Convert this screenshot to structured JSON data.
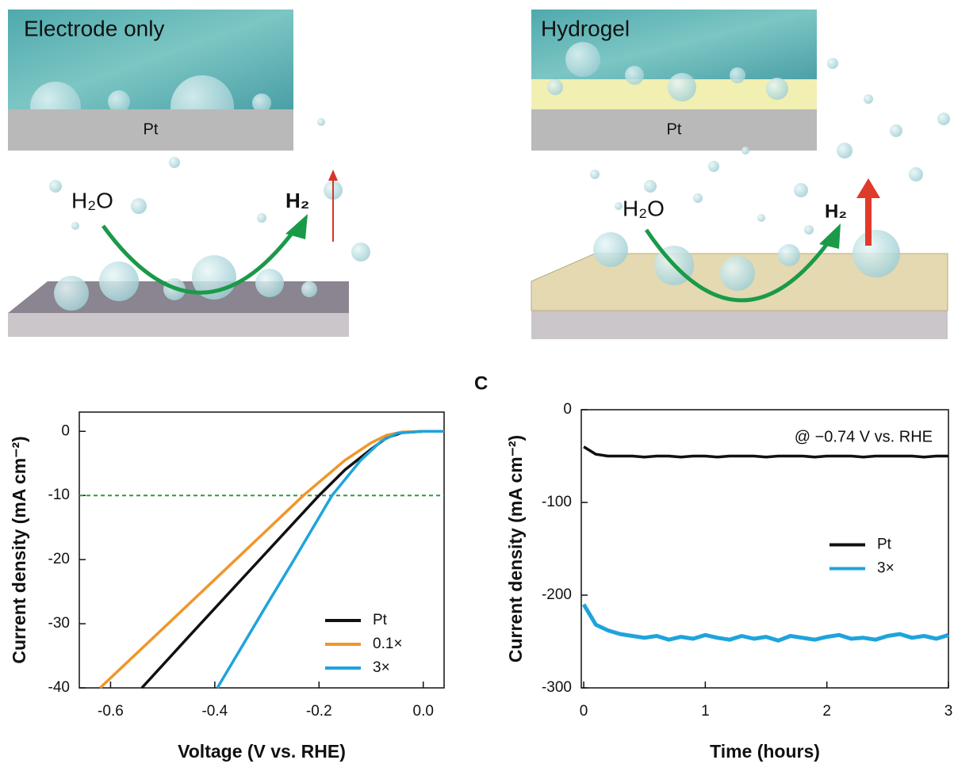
{
  "diagrams": [
    {
      "title": "Electrode only",
      "substrate": "Pt",
      "reactant": "H₂O",
      "product": "H₂"
    },
    {
      "title": "Hydrogel",
      "substrate": "Pt",
      "reactant": "H₂O",
      "product": "H₂"
    }
  ],
  "chart_data": [
    {
      "type": "line",
      "x_label": "Voltage (V vs. RHE)",
      "y_label": "Current density (mA cm⁻²)",
      "xlim": [
        -0.66,
        0.04
      ],
      "ylim": [
        -40,
        3
      ],
      "xticks": [
        -0.6,
        -0.4,
        -0.2,
        {
          "value": 0,
          "label": "0.0"
        }
      ],
      "yticks": [
        0,
        -10,
        -20,
        -30,
        -40
      ],
      "reference_lines": [
        {
          "value": -10,
          "color": "#2a9d3e"
        }
      ],
      "legend": "lower right",
      "series": [
        {
          "name": "Pt",
          "color": "#111111",
          "x": [
            -0.54,
            -0.45,
            -0.35,
            -0.25,
            -0.2,
            -0.15,
            -0.1,
            -0.07,
            -0.04,
            0,
            0.04
          ],
          "values": [
            -40,
            -32,
            -23.2,
            -14.4,
            -10,
            -6,
            -2.8,
            -1,
            -0.2,
            0,
            0
          ]
        },
        {
          "name": "0.1×",
          "color": "#f0962a",
          "x": [
            -0.62,
            -0.5,
            -0.4,
            -0.3,
            -0.23,
            -0.15,
            -0.1,
            -0.07,
            -0.04,
            0,
            0.04
          ],
          "values": [
            -40,
            -30.8,
            -23.1,
            -15.4,
            -10,
            -4.5,
            -1.8,
            -0.6,
            -0.1,
            0,
            0
          ]
        },
        {
          "name": "3×",
          "color": "#1ea4dc",
          "x": [
            -0.395,
            -0.3,
            -0.25,
            -0.175,
            -0.12,
            -0.08,
            -0.05,
            0,
            0.04
          ],
          "values": [
            -40,
            -27,
            -20.3,
            -10,
            -4.5,
            -1.5,
            -0.3,
            0,
            0
          ]
        }
      ]
    },
    {
      "type": "line",
      "panel_label": "C",
      "x_label": "Time (hours)",
      "y_label": "Current density (mA cm⁻²)",
      "annotation": "@ −0.74 V vs. RHE",
      "xlim": [
        -0.02,
        3
      ],
      "ylim": [
        -300,
        0
      ],
      "xticks": [
        0,
        1,
        2,
        3
      ],
      "yticks": [
        0,
        -100,
        -200,
        -300
      ],
      "legend": "center right",
      "x": [
        0,
        0.1,
        0.2,
        0.3,
        0.4,
        0.5,
        0.6,
        0.7,
        0.8,
        0.9,
        1,
        1.1,
        1.2,
        1.3,
        1.4,
        1.5,
        1.6,
        1.7,
        1.8,
        1.9,
        2,
        2.1,
        2.2,
        2.3,
        2.4,
        2.5,
        2.6,
        2.7,
        2.8,
        2.9,
        3
      ],
      "series": [
        {
          "name": "Pt",
          "color": "#111111",
          "values": [
            -40,
            -48,
            -50,
            -50,
            -50,
            -51,
            -50,
            -50,
            -51,
            -50,
            -50,
            -51,
            -50,
            -50,
            -50,
            -51,
            -50,
            -50,
            -50,
            -51,
            -50,
            -50,
            -50,
            -51,
            -50,
            -50,
            -50,
            -50,
            -51,
            -50,
            -50
          ]
        },
        {
          "name": "3×",
          "color": "#1ea4dc",
          "values": [
            -210,
            -232,
            -238,
            -242,
            -244,
            -246,
            -244,
            -248,
            -245,
            -247,
            -243,
            -246,
            -248,
            -244,
            -247,
            -245,
            -249,
            -244,
            -246,
            -248,
            -245,
            -243,
            -247,
            -246,
            -248,
            -244,
            -242,
            -246,
            -244,
            -247,
            -243
          ]
        }
      ]
    }
  ]
}
